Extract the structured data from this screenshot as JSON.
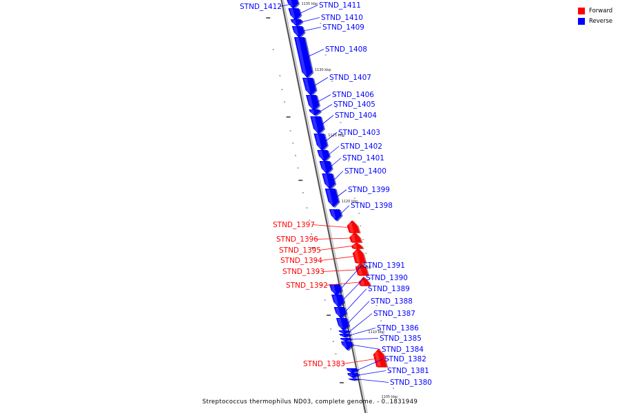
{
  "legend": {
    "forward_label": "Forward",
    "reverse_label": "Reverse",
    "forward_color": "#ff0000",
    "reverse_color": "#0000ff"
  },
  "caption": "Streptococcus thermophilus ND03, complete genome. - 0..1831949",
  "scale_labels": [
    "1135 kbp",
    "1130 kbp",
    "1125 kbp",
    "1120 kbp",
    "1115 kbp",
    "1110 kbp",
    "1105 kbp"
  ],
  "genes": [
    {
      "name": "STND_1412",
      "strand": "reverse"
    },
    {
      "name": "STND_1411",
      "strand": "reverse"
    },
    {
      "name": "STND_1410",
      "strand": "reverse"
    },
    {
      "name": "STND_1409",
      "strand": "reverse"
    },
    {
      "name": "STND_1408",
      "strand": "reverse"
    },
    {
      "name": "STND_1407",
      "strand": "reverse"
    },
    {
      "name": "STND_1406",
      "strand": "reverse"
    },
    {
      "name": "STND_1405",
      "strand": "reverse"
    },
    {
      "name": "STND_1404",
      "strand": "reverse"
    },
    {
      "name": "STND_1403",
      "strand": "reverse"
    },
    {
      "name": "STND_1402",
      "strand": "reverse"
    },
    {
      "name": "STND_1401",
      "strand": "reverse"
    },
    {
      "name": "STND_1400",
      "strand": "reverse"
    },
    {
      "name": "STND_1399",
      "strand": "reverse"
    },
    {
      "name": "STND_1398",
      "strand": "reverse"
    },
    {
      "name": "STND_1397",
      "strand": "forward"
    },
    {
      "name": "STND_1396",
      "strand": "forward"
    },
    {
      "name": "STND_1395",
      "strand": "forward"
    },
    {
      "name": "STND_1394",
      "strand": "forward"
    },
    {
      "name": "STND_1393",
      "strand": "forward"
    },
    {
      "name": "STND_1392",
      "strand": "forward"
    },
    {
      "name": "STND_1391",
      "strand": "reverse"
    },
    {
      "name": "STND_1390",
      "strand": "reverse"
    },
    {
      "name": "STND_1389",
      "strand": "reverse"
    },
    {
      "name": "STND_1388",
      "strand": "reverse"
    },
    {
      "name": "STND_1387",
      "strand": "reverse"
    },
    {
      "name": "STND_1386",
      "strand": "reverse"
    },
    {
      "name": "STND_1385",
      "strand": "reverse"
    },
    {
      "name": "STND_1384",
      "strand": "reverse"
    },
    {
      "name": "STND_1383",
      "strand": "forward"
    },
    {
      "name": "STND_1382",
      "strand": "reverse"
    },
    {
      "name": "STND_1381",
      "strand": "reverse"
    },
    {
      "name": "STND_1380",
      "strand": "reverse"
    }
  ]
}
